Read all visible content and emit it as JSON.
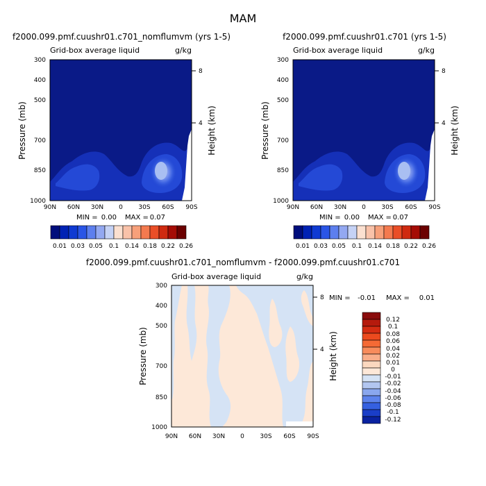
{
  "figure": {
    "title": "MAM"
  },
  "chart_data": [
    {
      "type": "heatmap",
      "title": "f2000.099.pmf.cuushr01.c701_nomflumvm (yrs 1-5)",
      "subtitle_left": "Grid-box average liquid",
      "subtitle_right": "g/kg",
      "xlabel": "",
      "ylabel": "Pressure (mb)",
      "ylabel_right": "Height (km)",
      "x_ticks": [
        "90N",
        "60N",
        "30N",
        "0",
        "30S",
        "60S",
        "90S"
      ],
      "y_ticks": [
        "300",
        "400",
        "500",
        "700",
        "850",
        "1000"
      ],
      "y_right_ticks": [
        "8",
        "4"
      ],
      "ylim": [
        1000,
        300
      ],
      "min_label": "MIN =",
      "min_value": "0.00",
      "max_label": "MAX =",
      "max_value": "0.07",
      "colorbar_labels": [
        "0.01",
        "0.03",
        "0.05",
        "0.1",
        "0.14",
        "0.18",
        "0.22",
        "0.26"
      ],
      "colorbar_colors": [
        "#000e7c",
        "#0022b4",
        "#0f3ad2",
        "#2a55e6",
        "#5d7fee",
        "#93a8f1",
        "#c5d2f5",
        "#fbe0d0",
        "#f9c2a9",
        "#f7a07a",
        "#f47a4f",
        "#ea4e27",
        "#cf2a10",
        "#a50c05",
        "#6b0000"
      ],
      "background_color": "#0a1a87"
    },
    {
      "type": "heatmap",
      "title": "f2000.099.pmf.cuushr01.c701 (yrs 1-5)",
      "subtitle_left": "Grid-box average liquid",
      "subtitle_right": "g/kg",
      "xlabel": "",
      "ylabel": "Pressure (mb)",
      "ylabel_right": "Height (km)",
      "x_ticks": [
        "90N",
        "60N",
        "30N",
        "0",
        "30S",
        "60S",
        "90S"
      ],
      "y_ticks": [
        "300",
        "400",
        "500",
        "700",
        "850",
        "1000"
      ],
      "y_right_ticks": [
        "8",
        "4"
      ],
      "ylim": [
        1000,
        300
      ],
      "min_label": "MIN =",
      "min_value": "0.00",
      "max_label": "MAX =",
      "max_value": "0.07",
      "colorbar_labels": [
        "0.01",
        "0.03",
        "0.05",
        "0.1",
        "0.14",
        "0.18",
        "0.22",
        "0.26"
      ],
      "colorbar_colors": [
        "#000e7c",
        "#0022b4",
        "#0f3ad2",
        "#2a55e6",
        "#5d7fee",
        "#93a8f1",
        "#c5d2f5",
        "#fbe0d0",
        "#f9c2a9",
        "#f7a07a",
        "#f47a4f",
        "#ea4e27",
        "#cf2a10",
        "#a50c05",
        "#6b0000"
      ],
      "background_color": "#0a1a87"
    },
    {
      "type": "heatmap",
      "title": "f2000.099.pmf.cuushr01.c701_nomflumvm - f2000.099.pmf.cuushr01.c701",
      "subtitle_left": "Grid-box average liquid",
      "subtitle_right": "g/kg",
      "xlabel": "",
      "ylabel": "Pressure (mb)",
      "ylabel_right": "Height (km)",
      "x_ticks": [
        "90N",
        "60N",
        "30N",
        "0",
        "30S",
        "60S",
        "90S"
      ],
      "y_ticks": [
        "300",
        "400",
        "500",
        "700",
        "850",
        "1000"
      ],
      "y_right_ticks": [
        "8",
        "4"
      ],
      "ylim": [
        1000,
        300
      ],
      "min_label": "MIN =",
      "min_value": "-0.01",
      "max_label": "MAX =",
      "max_value": "0.01",
      "colorbar_labels": [
        "0.12",
        "0.1",
        "0.08",
        "0.06",
        "0.04",
        "0.02",
        "0.01",
        "0",
        "-0.01",
        "-0.02",
        "-0.04",
        "-0.06",
        "-0.08",
        "-0.1",
        "-0.12"
      ],
      "colorbar_colors": [
        "#8a0c0c",
        "#b51a0d",
        "#d42c12",
        "#ec4a1e",
        "#f56a35",
        "#f88c5c",
        "#f9ae8a",
        "#fbd8bf",
        "#fde8d8",
        "#d5e3f5",
        "#b2c6f0",
        "#8aa7ee",
        "#5d83ec",
        "#3560e0",
        "#1a3ec8",
        "#0a22a0"
      ],
      "fill_colors": [
        "#fde8d8",
        "#d5e3f5"
      ]
    }
  ]
}
